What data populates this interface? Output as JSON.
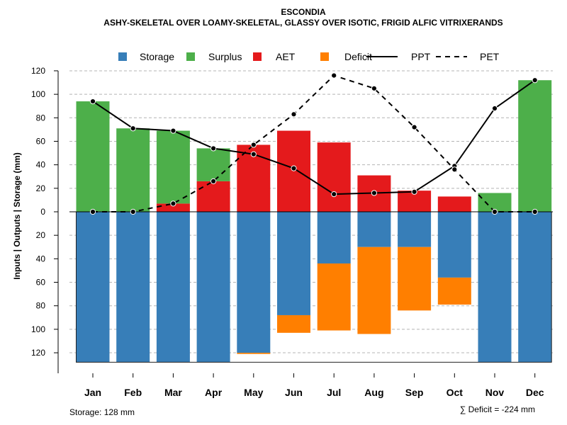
{
  "chart_data": {
    "type": "bar",
    "title": "ESCONDIA",
    "subtitle": "ASHY-SKELETAL OVER LOAMY-SKELETAL, GLASSY OVER ISOTIC, FRIGID ALFIC VITRIXERANDS",
    "ylabel": "Inputs | Outputs | Storage    (mm)",
    "ylim": [
      -128,
      120
    ],
    "yticks": [
      120,
      100,
      80,
      60,
      40,
      20,
      0,
      20,
      40,
      60,
      80,
      100,
      120
    ],
    "ytick_values": [
      120,
      100,
      80,
      60,
      40,
      20,
      0,
      -20,
      -40,
      -60,
      -80,
      -100,
      -120
    ],
    "categories": [
      "Jan",
      "Feb",
      "Mar",
      "Apr",
      "May",
      "Jun",
      "Jul",
      "Aug",
      "Sep",
      "Oct",
      "Nov",
      "Dec"
    ],
    "legend": {
      "placement": "top",
      "entries": [
        {
          "label": "Storage",
          "kind": "box",
          "color": "#377EB8"
        },
        {
          "label": "Surplus",
          "kind": "box",
          "color": "#4DAF4A"
        },
        {
          "label": "AET",
          "kind": "box",
          "color": "#E41A1C"
        },
        {
          "label": "Deficit",
          "kind": "box",
          "color": "#FF7F00"
        },
        {
          "label": "PPT",
          "kind": "solid"
        },
        {
          "label": "PET",
          "kind": "dashed"
        }
      ]
    },
    "stacked_positive": [
      {
        "name": "AET",
        "color": "#E41A1C",
        "values": [
          0,
          0,
          7,
          26,
          57,
          69,
          59,
          31,
          18,
          13,
          0,
          0
        ]
      },
      {
        "name": "Surplus",
        "color": "#4DAF4A",
        "values": [
          94,
          71,
          62,
          28,
          0,
          0,
          0,
          0,
          0,
          0,
          16,
          112
        ]
      }
    ],
    "stacked_negative": [
      {
        "name": "Storage",
        "color": "#377EB8",
        "values": [
          128,
          128,
          128,
          128,
          120,
          88,
          44,
          30,
          30,
          56,
          128,
          128
        ]
      },
      {
        "name": "Deficit",
        "color": "#FF7F00",
        "values": [
          0,
          0,
          0,
          0,
          1,
          15,
          57,
          74,
          54,
          23,
          0,
          0
        ]
      }
    ],
    "lines": [
      {
        "name": "PPT",
        "style": "solid",
        "values": [
          94,
          71,
          69,
          54,
          49,
          37,
          15,
          16,
          17,
          39,
          88,
          112
        ]
      },
      {
        "name": "PET",
        "style": "dashed",
        "values": [
          0,
          0,
          7,
          26,
          57,
          83,
          116,
          105,
          72,
          36,
          0,
          0
        ]
      }
    ],
    "grid": true,
    "storage_note": "Storage: 128 mm",
    "deficit_note": "∑ Deficit = -224 mm"
  }
}
